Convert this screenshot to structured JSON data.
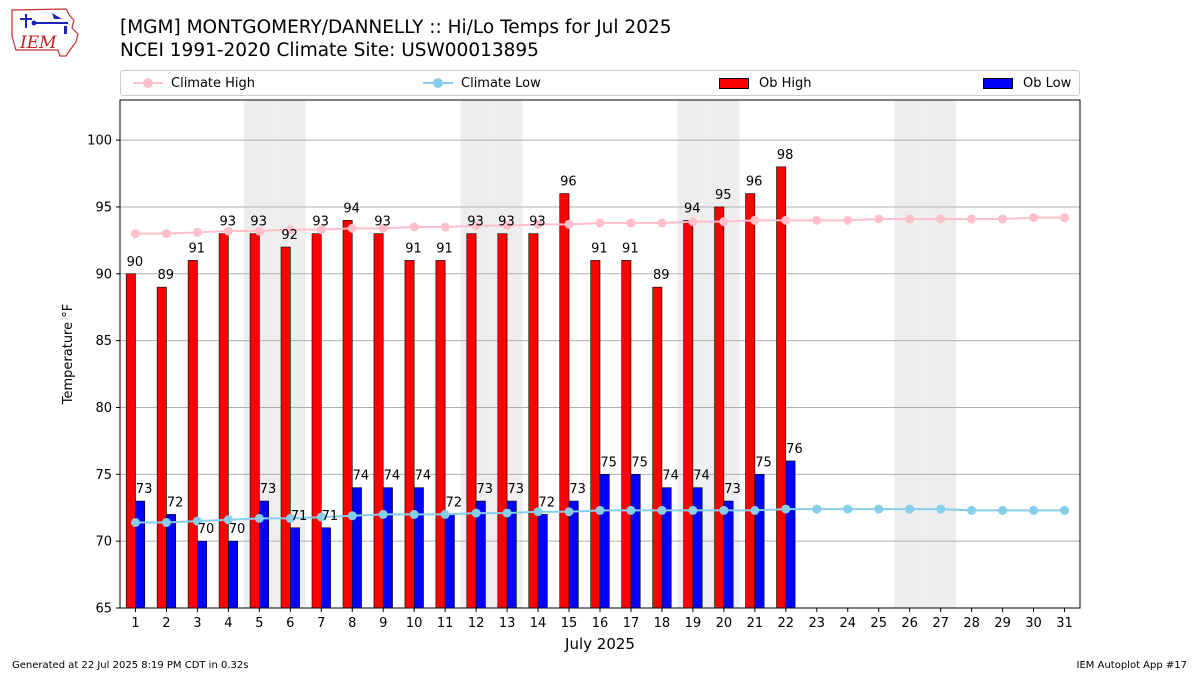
{
  "logo": {
    "text": "IEM"
  },
  "header": {
    "title_line1": "[MGM] MONTGOMERY/DANNELLY :: Hi/Lo Temps for Jul 2025",
    "title_line2": "NCEI 1991-2020 Climate Site: USW00013895"
  },
  "legend": {
    "climate_high": "Climate High",
    "climate_low": "Climate Low",
    "ob_high": "Ob High",
    "ob_low": "Ob Low"
  },
  "colors": {
    "ob_high": "#ff0000",
    "ob_low": "#0000ff",
    "climate_high": "#ffc0cb",
    "climate_low": "#87ceeb",
    "weekend_shade": "#eeeeee",
    "grid": "#b0b0b0"
  },
  "chart_data": {
    "type": "bar",
    "xlabel": "July 2025",
    "ylabel": "Temperature °F",
    "ylim": [
      65,
      103
    ],
    "yticks": [
      65,
      70,
      75,
      80,
      85,
      90,
      95,
      100
    ],
    "grid": "horizontal",
    "legend_position": "top",
    "categories": [
      "1",
      "2",
      "3",
      "4",
      "5",
      "6",
      "7",
      "8",
      "9",
      "10",
      "11",
      "12",
      "13",
      "14",
      "15",
      "16",
      "17",
      "18",
      "19",
      "20",
      "21",
      "22",
      "23",
      "24",
      "25",
      "26",
      "27",
      "28",
      "29",
      "30",
      "31"
    ],
    "weekend_days": [
      5,
      6,
      12,
      13,
      19,
      20,
      26,
      27
    ],
    "series": [
      {
        "name": "Ob High",
        "kind": "bar",
        "values": [
          90,
          89,
          91,
          93,
          93,
          92,
          93,
          94,
          93,
          91,
          91,
          93,
          93,
          93,
          96,
          91,
          91,
          89,
          94,
          95,
          96,
          98,
          null,
          null,
          null,
          null,
          null,
          null,
          null,
          null,
          null
        ]
      },
      {
        "name": "Ob Low",
        "kind": "bar",
        "values": [
          73,
          72,
          70,
          70,
          73,
          71,
          71,
          74,
          74,
          74,
          72,
          73,
          73,
          72,
          73,
          75,
          75,
          74,
          74,
          73,
          75,
          76,
          null,
          null,
          null,
          null,
          null,
          null,
          null,
          null,
          null
        ]
      },
      {
        "name": "Climate High",
        "kind": "line",
        "values": [
          93.0,
          93.0,
          93.1,
          93.2,
          93.2,
          93.3,
          93.3,
          93.4,
          93.4,
          93.5,
          93.5,
          93.6,
          93.6,
          93.7,
          93.7,
          93.8,
          93.8,
          93.8,
          93.9,
          93.9,
          94.0,
          94.0,
          94.0,
          94.0,
          94.1,
          94.1,
          94.1,
          94.1,
          94.1,
          94.2,
          94.2
        ]
      },
      {
        "name": "Climate Low",
        "kind": "line",
        "values": [
          71.4,
          71.4,
          71.5,
          71.6,
          71.7,
          71.7,
          71.8,
          71.9,
          72.0,
          72.0,
          72.0,
          72.1,
          72.1,
          72.2,
          72.2,
          72.3,
          72.3,
          72.3,
          72.3,
          72.3,
          72.3,
          72.4,
          72.4,
          72.4,
          72.4,
          72.4,
          72.4,
          72.3,
          72.3,
          72.3,
          72.3
        ]
      }
    ]
  },
  "footer": {
    "left": "Generated at 22 Jul 2025 8:19 PM CDT in 0.32s",
    "right": "IEM Autoplot App #17"
  }
}
